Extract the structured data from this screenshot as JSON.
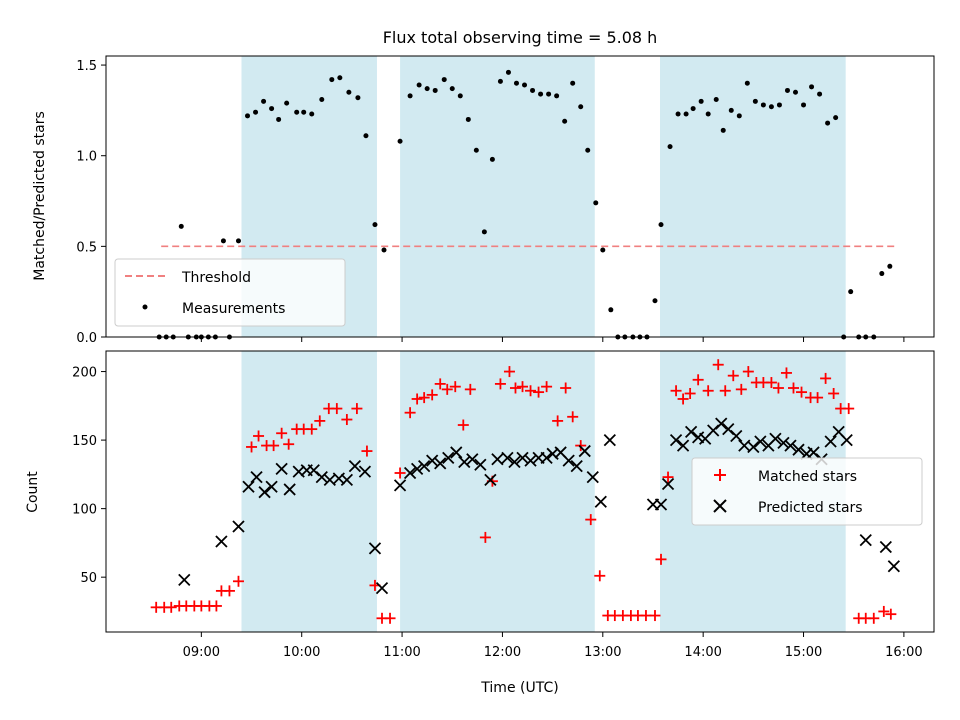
{
  "chart_data": {
    "type": "scatter",
    "title": "Flux total observing time = 5.08 h",
    "xlabel": "Time (UTC)",
    "x_unit": "hours",
    "xlim": [
      8.05,
      16.3
    ],
    "xticks": [
      {
        "value": 9,
        "label": "09:00"
      },
      {
        "value": 10,
        "label": "10:00"
      },
      {
        "value": 11,
        "label": "11:00"
      },
      {
        "value": 12,
        "label": "12:00"
      },
      {
        "value": 13,
        "label": "13:00"
      },
      {
        "value": 14,
        "label": "14:00"
      },
      {
        "value": 15,
        "label": "15:00"
      },
      {
        "value": 16,
        "label": "16:00"
      }
    ],
    "shaded_intervals": [
      [
        9.4,
        10.75
      ],
      [
        10.98,
        12.92
      ],
      [
        13.57,
        15.42
      ]
    ],
    "shade_color": "#add8e6",
    "top_panel": {
      "ylabel": "Matched/Predicted stars",
      "ylim": [
        0,
        1.55
      ],
      "yticks": [
        {
          "value": 0,
          "label": "0.0"
        },
        {
          "value": 0.5,
          "label": "0.5"
        },
        {
          "value": 1.0,
          "label": "1.0"
        },
        {
          "value": 1.5,
          "label": "1.5"
        }
      ],
      "threshold": {
        "name": "Threshold",
        "value": 0.5,
        "x_range": [
          8.6,
          15.92
        ],
        "color": "#f08080"
      },
      "measurements": {
        "name": "Measurements",
        "color": "#000000",
        "points": [
          [
            8.58,
            0
          ],
          [
            8.65,
            0
          ],
          [
            8.72,
            0
          ],
          [
            8.8,
            0.61
          ],
          [
            8.87,
            0
          ],
          [
            8.95,
            0
          ],
          [
            9.0,
            0
          ],
          [
            9.07,
            0
          ],
          [
            9.14,
            0
          ],
          [
            9.22,
            0.53
          ],
          [
            9.28,
            0
          ],
          [
            9.37,
            0.53
          ],
          [
            9.46,
            1.22
          ],
          [
            9.54,
            1.24
          ],
          [
            9.62,
            1.3
          ],
          [
            9.7,
            1.26
          ],
          [
            9.77,
            1.2
          ],
          [
            9.85,
            1.29
          ],
          [
            9.95,
            1.24
          ],
          [
            10.02,
            1.24
          ],
          [
            10.1,
            1.23
          ],
          [
            10.2,
            1.31
          ],
          [
            10.3,
            1.42
          ],
          [
            10.38,
            1.43
          ],
          [
            10.47,
            1.35
          ],
          [
            10.56,
            1.32
          ],
          [
            10.64,
            1.11
          ],
          [
            10.73,
            0.62
          ],
          [
            10.82,
            0.48
          ],
          [
            10.98,
            1.08
          ],
          [
            11.08,
            1.33
          ],
          [
            11.17,
            1.39
          ],
          [
            11.25,
            1.37
          ],
          [
            11.33,
            1.36
          ],
          [
            11.42,
            1.42
          ],
          [
            11.5,
            1.37
          ],
          [
            11.58,
            1.33
          ],
          [
            11.66,
            1.2
          ],
          [
            11.74,
            1.03
          ],
          [
            11.82,
            0.58
          ],
          [
            11.9,
            0.98
          ],
          [
            11.98,
            1.41
          ],
          [
            12.06,
            1.46
          ],
          [
            12.14,
            1.4
          ],
          [
            12.22,
            1.39
          ],
          [
            12.3,
            1.36
          ],
          [
            12.38,
            1.34
          ],
          [
            12.46,
            1.34
          ],
          [
            12.54,
            1.33
          ],
          [
            12.62,
            1.19
          ],
          [
            12.7,
            1.4
          ],
          [
            12.78,
            1.27
          ],
          [
            12.85,
            1.03
          ],
          [
            12.93,
            0.74
          ],
          [
            13.0,
            0.48
          ],
          [
            13.08,
            0.15
          ],
          [
            13.15,
            0
          ],
          [
            13.22,
            0
          ],
          [
            13.3,
            0
          ],
          [
            13.37,
            0
          ],
          [
            13.44,
            0
          ],
          [
            13.52,
            0.2
          ],
          [
            13.58,
            0.62
          ],
          [
            13.67,
            1.05
          ],
          [
            13.75,
            1.23
          ],
          [
            13.83,
            1.23
          ],
          [
            13.9,
            1.26
          ],
          [
            13.98,
            1.3
          ],
          [
            14.05,
            1.23
          ],
          [
            14.13,
            1.31
          ],
          [
            14.2,
            1.14
          ],
          [
            14.28,
            1.25
          ],
          [
            14.36,
            1.22
          ],
          [
            14.44,
            1.4
          ],
          [
            14.52,
            1.3
          ],
          [
            14.6,
            1.28
          ],
          [
            14.68,
            1.27
          ],
          [
            14.76,
            1.28
          ],
          [
            14.84,
            1.36
          ],
          [
            14.92,
            1.35
          ],
          [
            15.0,
            1.28
          ],
          [
            15.08,
            1.38
          ],
          [
            15.16,
            1.34
          ],
          [
            15.24,
            1.18
          ],
          [
            15.32,
            1.21
          ],
          [
            15.4,
            0
          ],
          [
            15.47,
            0.25
          ],
          [
            15.55,
            0
          ],
          [
            15.62,
            0
          ],
          [
            15.7,
            0
          ],
          [
            15.78,
            0.35
          ],
          [
            15.86,
            0.39
          ]
        ]
      }
    },
    "bottom_panel": {
      "ylabel": "Count",
      "ylim": [
        10,
        215
      ],
      "yticks": [
        {
          "value": 50,
          "label": "50"
        },
        {
          "value": 100,
          "label": "100"
        },
        {
          "value": 150,
          "label": "150"
        },
        {
          "value": 200,
          "label": "200"
        }
      ],
      "series": [
        {
          "name": "Matched stars",
          "marker": "plus",
          "color": "#ff0000",
          "points": [
            [
              8.55,
              28
            ],
            [
              8.63,
              28
            ],
            [
              8.7,
              28
            ],
            [
              8.78,
              29
            ],
            [
              8.85,
              29
            ],
            [
              8.93,
              29
            ],
            [
              9.0,
              29
            ],
            [
              9.08,
              29
            ],
            [
              9.15,
              29
            ],
            [
              9.2,
              40
            ],
            [
              9.28,
              40
            ],
            [
              9.37,
              47
            ],
            [
              9.5,
              145
            ],
            [
              9.57,
              153
            ],
            [
              9.65,
              146
            ],
            [
              9.72,
              146
            ],
            [
              9.8,
              155
            ],
            [
              9.87,
              147
            ],
            [
              9.95,
              158
            ],
            [
              10.02,
              158
            ],
            [
              10.1,
              158
            ],
            [
              10.18,
              164
            ],
            [
              10.27,
              173
            ],
            [
              10.35,
              173
            ],
            [
              10.45,
              165
            ],
            [
              10.55,
              173
            ],
            [
              10.65,
              142
            ],
            [
              10.73,
              44
            ],
            [
              10.8,
              20
            ],
            [
              10.88,
              20
            ],
            [
              10.98,
              126
            ],
            [
              11.08,
              170
            ],
            [
              11.15,
              180
            ],
            [
              11.22,
              181
            ],
            [
              11.3,
              183
            ],
            [
              11.38,
              191
            ],
            [
              11.45,
              187
            ],
            [
              11.53,
              189
            ],
            [
              11.61,
              161
            ],
            [
              11.68,
              187
            ],
            [
              11.83,
              79
            ],
            [
              11.9,
              120
            ],
            [
              11.98,
              191
            ],
            [
              12.07,
              200
            ],
            [
              12.13,
              188
            ],
            [
              12.2,
              189
            ],
            [
              12.28,
              186
            ],
            [
              12.36,
              185
            ],
            [
              12.44,
              189
            ],
            [
              12.55,
              164
            ],
            [
              12.63,
              188
            ],
            [
              12.7,
              167
            ],
            [
              12.78,
              146
            ],
            [
              12.88,
              92
            ],
            [
              12.97,
              51
            ],
            [
              13.05,
              22
            ],
            [
              13.12,
              22
            ],
            [
              13.2,
              22
            ],
            [
              13.28,
              22
            ],
            [
              13.35,
              22
            ],
            [
              13.43,
              22
            ],
            [
              13.52,
              22
            ],
            [
              13.58,
              63
            ],
            [
              13.65,
              123
            ],
            [
              13.73,
              186
            ],
            [
              13.8,
              180
            ],
            [
              13.87,
              184
            ],
            [
              13.95,
              194
            ],
            [
              14.05,
              186
            ],
            [
              14.15,
              205
            ],
            [
              14.22,
              186
            ],
            [
              14.3,
              197
            ],
            [
              14.38,
              187
            ],
            [
              14.45,
              200
            ],
            [
              14.53,
              192
            ],
            [
              14.6,
              192
            ],
            [
              14.68,
              192
            ],
            [
              14.75,
              188
            ],
            [
              14.83,
              199
            ],
            [
              14.9,
              188
            ],
            [
              14.98,
              185
            ],
            [
              15.07,
              181
            ],
            [
              15.14,
              181
            ],
            [
              15.22,
              195
            ],
            [
              15.3,
              184
            ],
            [
              15.37,
              173
            ],
            [
              15.45,
              173
            ],
            [
              15.55,
              20
            ],
            [
              15.62,
              20
            ],
            [
              15.7,
              20
            ],
            [
              15.8,
              25
            ],
            [
              15.87,
              23
            ]
          ]
        },
        {
          "name": "Predicted stars",
          "marker": "x",
          "color": "#000000",
          "points": [
            [
              8.83,
              48
            ],
            [
              9.2,
              76
            ],
            [
              9.37,
              87
            ],
            [
              9.47,
              116
            ],
            [
              9.55,
              123
            ],
            [
              9.63,
              112
            ],
            [
              9.7,
              116
            ],
            [
              9.8,
              129
            ],
            [
              9.88,
              114
            ],
            [
              9.97,
              127
            ],
            [
              10.05,
              128
            ],
            [
              10.12,
              128
            ],
            [
              10.2,
              123
            ],
            [
              10.28,
              121
            ],
            [
              10.37,
              122
            ],
            [
              10.45,
              121
            ],
            [
              10.53,
              131
            ],
            [
              10.63,
              127
            ],
            [
              10.73,
              71
            ],
            [
              10.8,
              42
            ],
            [
              10.98,
              117
            ],
            [
              11.08,
              126
            ],
            [
              11.15,
              129
            ],
            [
              11.22,
              131
            ],
            [
              11.3,
              135
            ],
            [
              11.38,
              133
            ],
            [
              11.46,
              137
            ],
            [
              11.54,
              141
            ],
            [
              11.62,
              134
            ],
            [
              11.7,
              136
            ],
            [
              11.78,
              132
            ],
            [
              11.88,
              121
            ],
            [
              11.95,
              136
            ],
            [
              12.05,
              137
            ],
            [
              12.12,
              134
            ],
            [
              12.2,
              137
            ],
            [
              12.28,
              135
            ],
            [
              12.36,
              137
            ],
            [
              12.44,
              137
            ],
            [
              12.5,
              140
            ],
            [
              12.58,
              141
            ],
            [
              12.66,
              135
            ],
            [
              12.74,
              131
            ],
            [
              12.82,
              142
            ],
            [
              12.9,
              123
            ],
            [
              12.98,
              105
            ],
            [
              13.07,
              150
            ],
            [
              13.5,
              103
            ],
            [
              13.58,
              103
            ],
            [
              13.65,
              118
            ],
            [
              13.73,
              150
            ],
            [
              13.8,
              146
            ],
            [
              13.88,
              156
            ],
            [
              13.95,
              152
            ],
            [
              14.02,
              151
            ],
            [
              14.1,
              157
            ],
            [
              14.18,
              162
            ],
            [
              14.25,
              158
            ],
            [
              14.33,
              153
            ],
            [
              14.41,
              146
            ],
            [
              14.5,
              145
            ],
            [
              14.57,
              149
            ],
            [
              14.65,
              146
            ],
            [
              14.72,
              151
            ],
            [
              14.8,
              148
            ],
            [
              14.87,
              146
            ],
            [
              14.95,
              143
            ],
            [
              15.03,
              140
            ],
            [
              15.1,
              141
            ],
            [
              15.18,
              136
            ],
            [
              15.27,
              149
            ],
            [
              15.35,
              156
            ],
            [
              15.43,
              150
            ],
            [
              15.62,
              77
            ],
            [
              15.82,
              72
            ],
            [
              15.9,
              58
            ]
          ]
        }
      ]
    }
  }
}
